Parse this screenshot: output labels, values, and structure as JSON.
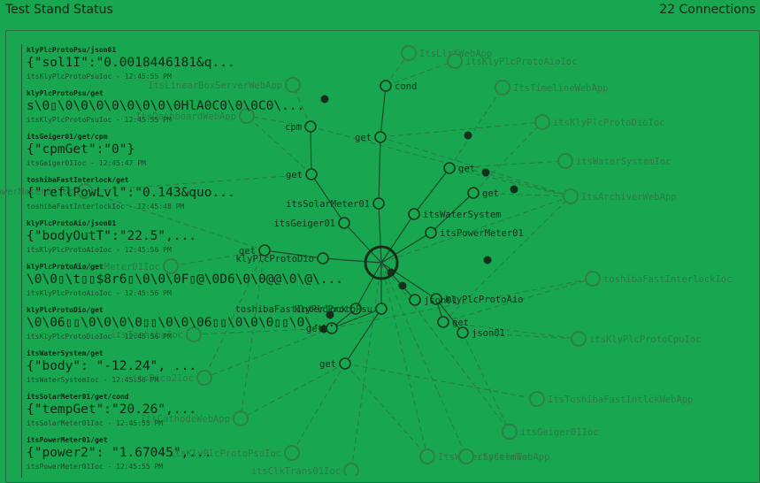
{
  "header": {
    "title": "Test Stand Status",
    "connections": "22 Connections"
  },
  "feed": [
    {
      "topic": "klyPlcProtoPsu/json01",
      "value": "{\"sol1I\":\"0.0018446181&q...",
      "meta": "itsKlyPlcProtoPsuIoc - 12:45:55 PM"
    },
    {
      "topic": "klyPlcProtoPsu/get",
      "value": "s\\0▯\\0\\0\\0\\0\\0\\0\\0\\0HlA0C0\\0\\0C0\\...",
      "meta": "itsKlyPlcProtoPsuIoc - 12:45:55 PM"
    },
    {
      "topic": "itsGeiger01/get/cpm",
      "value": "{\"cpmGet\":\"0\"}",
      "meta": "itsGeiger01Ioc - 12:45:47 PM"
    },
    {
      "topic": "toshibaFastInterlock/get",
      "value": "{\"reflPowLvl\":\"0.143&quo...",
      "meta": "toshibaFastInterlockIoc - 12:45:48 PM"
    },
    {
      "topic": "klyPlcProtoAio/json01",
      "value": "{\"bodyOutT\":\"22.5\",...",
      "meta": "itsKlyPlcProtoAioIoc - 12:45:56 PM"
    },
    {
      "topic": "klyPlcProtoAio/get",
      "value": "\\0\\0▯\\t▯▯$8r6▯\\0\\0\\0F▯@\\0D6\\0\\0@@\\0\\@\\...",
      "meta": "itsKlyPlcProtoAioIoc - 12:45:56 PM"
    },
    {
      "topic": "klyPlcProtoDio/get",
      "value": "\\0\\06▯▯\\0\\0\\0\\0▯▯\\0\\0\\06▯▯\\0\\0\\0▯▯\\0\\...",
      "meta": "itsKlyPlcProtoDioIoc - 12:45:56 PM"
    },
    {
      "topic": "itsWaterSystem/get",
      "value": "{\"body\": \"-12.24\", ...",
      "meta": "itsWaterSystemIoc - 12:45:56 PM"
    },
    {
      "topic": "itsSolarMeter01/get/cond",
      "value": "{\"tempGet\":\"20.26\",...",
      "meta": "itsSolarMeter01Ioc - 12:45:55 PM"
    },
    {
      "topic": "itsPowerMeter01/get",
      "value": "{\"power2\": \"1.67045\",...",
      "meta": "itsPowerMeter01Ioc - 12:45:55 PM"
    }
  ],
  "graph": {
    "hub": "hub",
    "nodes": [
      {
        "id": "ItsLlrfWebApp",
        "label": "ItsLlrfWebApp",
        "side": "r",
        "faint": true
      },
      {
        "id": "itsKlyPlcProtoAioIoc",
        "label": "itsKlyPlcProtoAioIoc",
        "side": "r",
        "faint": true
      },
      {
        "id": "ItsTimelineWebApp",
        "label": "ItsTimelineWebApp",
        "side": "r",
        "faint": true
      },
      {
        "id": "itsKlyPlcProtoDioIoc",
        "label": "itsKlyPlcProtoDioIoc",
        "side": "r",
        "faint": true
      },
      {
        "id": "itsWaterSystemIoc",
        "label": "itsWaterSystemIoc",
        "side": "r",
        "faint": true
      },
      {
        "id": "ItsArchiverWebApp",
        "label": "ItsArchiverWebApp",
        "side": "r",
        "faint": true
      },
      {
        "id": "toshibaFastInterlockIoc",
        "label": "toshibaFastInterlockIoc",
        "side": "r",
        "faint": true
      },
      {
        "id": "itsKlyPlcProtoCpuIoc",
        "label": "itsKlyPlcProtoCpuIoc",
        "side": "r",
        "faint": true
      },
      {
        "id": "ItsToshibaFastIntlckWebApp",
        "label": "ItsToshibaFastIntlckWebApp",
        "side": "r",
        "faint": true
      },
      {
        "id": "itsGeiger01Ioc",
        "label": "itsGeiger01Ioc",
        "side": "r",
        "faint": true
      },
      {
        "id": "ItsWaterSystemWebApp",
        "label": "ItsWaterSystemWebApp",
        "side": "r",
        "faint": true
      },
      {
        "id": "itsCelmIoc",
        "label": "itsCelmIoc",
        "side": "r",
        "faint": true
      },
      {
        "id": "itsClkTrans01Ioc",
        "label": "itsClkTrans01Ioc",
        "side": "l",
        "faint": true
      },
      {
        "id": "itsKlyPlcProtoPsuIoc",
        "label": "itsKlyPlcProtoPsuIoc",
        "side": "l",
        "faint": true
      },
      {
        "id": "ItsCathodeWebApp",
        "label": "ItsCathodeWebApp",
        "side": "l",
        "faint": true
      },
      {
        "id": "itsSolarMeter01Ioc",
        "label": "itsSolarMeter01Ioc",
        "side": "l",
        "faint": true
      },
      {
        "id": "itsLinearBoxServerWebApp",
        "label": "ItsLinearBoxServerWebApp",
        "side": "l",
        "faint": true
      },
      {
        "id": "itsDashboardWebApp",
        "label": "ItsDashboardWebApp",
        "side": "l",
        "faint": true
      },
      {
        "id": "itsPowerMeter01Ioc",
        "label": "itsPowerMeter01Ioc",
        "side": "l",
        "faint": true
      },
      {
        "id": "itsToshibaIoc",
        "label": "itsToshibaIoc",
        "side": "l",
        "faint": true
      },
      {
        "id": "itsPicoIoc",
        "label": "itsPico2Ioc",
        "side": "l",
        "faint": true
      },
      {
        "id": "cond",
        "label": "cond",
        "side": "r"
      },
      {
        "id": "cpm",
        "label": "cpm",
        "side": "l"
      },
      {
        "id": "get1",
        "label": "get",
        "side": "l"
      },
      {
        "id": "get2",
        "label": "get",
        "side": "l"
      },
      {
        "id": "get3",
        "label": "get",
        "side": "r"
      },
      {
        "id": "get4",
        "label": "get",
        "side": "r"
      },
      {
        "id": "itsSolarMeter01",
        "label": "itsSolarMeter01",
        "side": "l"
      },
      {
        "id": "itsWaterSystem",
        "label": "itsWaterSystem",
        "side": "r"
      },
      {
        "id": "itsGeiger01",
        "label": "itsGeiger01",
        "side": "l"
      },
      {
        "id": "itsPowerMeter01",
        "label": "itsPowerMeter01",
        "side": "r"
      },
      {
        "id": "get5",
        "label": "get",
        "side": "l"
      },
      {
        "id": "klyPlcProtoDio",
        "label": "klyPlcProtoDio",
        "side": "l"
      },
      {
        "id": "toshibaFastInterlock",
        "label": "toshibaFastInterlock",
        "side": "l"
      },
      {
        "id": "klyPlcProtoPsu",
        "label": "klyPlcProtoPsu",
        "side": "l"
      },
      {
        "id": "klyPlcProtoAio",
        "label": "klyPlcProtoAio",
        "side": "r"
      },
      {
        "id": "get6",
        "label": "get",
        "side": "r"
      },
      {
        "id": "get7",
        "label": "get",
        "side": "l"
      },
      {
        "id": "json01",
        "label": "json01",
        "side": "r"
      },
      {
        "id": "get8",
        "label": "get",
        "side": "l"
      },
      {
        "id": "json01b",
        "label": "json01",
        "side": "r"
      }
    ]
  }
}
